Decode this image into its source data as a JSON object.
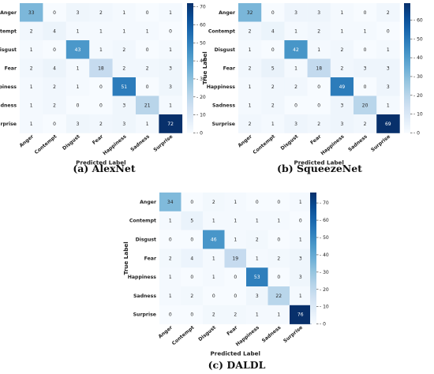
{
  "chart_data": [
    {
      "type": "heatmap",
      "caption": "(a) AlexNet",
      "xlabel": "Predicted Label",
      "ylabel": "True Label",
      "labels": [
        "Anger",
        "Contempt",
        "Disgust",
        "Fear",
        "Happiness",
        "Sadness",
        "Surprise"
      ],
      "matrix": [
        [
          33,
          0,
          3,
          2,
          1,
          0,
          1
        ],
        [
          2,
          4,
          1,
          1,
          1,
          1,
          0
        ],
        [
          1,
          0,
          43,
          1,
          2,
          0,
          1
        ],
        [
          2,
          4,
          1,
          18,
          2,
          2,
          3
        ],
        [
          1,
          2,
          1,
          0,
          51,
          0,
          3
        ],
        [
          1,
          2,
          0,
          0,
          3,
          21,
          1
        ],
        [
          1,
          0,
          3,
          2,
          3,
          1,
          72
        ]
      ],
      "colorbar_ticks": [
        0,
        10,
        20,
        30,
        40,
        50,
        60,
        70
      ],
      "vmax": 72
    },
    {
      "type": "heatmap",
      "caption": "(b) SqueezeNet",
      "xlabel": "Predicted Label",
      "ylabel": "True Label",
      "labels": [
        "Anger",
        "Contempt",
        "Disgust",
        "Fear",
        "Happiness",
        "Sadness",
        "Surprise"
      ],
      "matrix": [
        [
          32,
          0,
          3,
          3,
          1,
          0,
          2
        ],
        [
          2,
          4,
          1,
          2,
          1,
          1,
          0
        ],
        [
          1,
          0,
          42,
          1,
          2,
          0,
          1
        ],
        [
          2,
          5,
          1,
          18,
          2,
          3,
          3
        ],
        [
          1,
          2,
          2,
          0,
          49,
          0,
          3
        ],
        [
          1,
          2,
          0,
          0,
          3,
          20,
          1
        ],
        [
          2,
          1,
          3,
          2,
          3,
          2,
          69
        ]
      ],
      "colorbar_ticks": [
        0,
        10,
        20,
        30,
        40,
        50,
        60
      ],
      "vmax": 69
    },
    {
      "type": "heatmap",
      "caption": "(c) DALDL",
      "xlabel": "Predicted Label",
      "ylabel": "True Label",
      "labels": [
        "Anger",
        "Contempt",
        "Disgust",
        "Fear",
        "Happiness",
        "Sadness",
        "Surprise"
      ],
      "matrix": [
        [
          34,
          0,
          2,
          1,
          0,
          0,
          1
        ],
        [
          1,
          5,
          1,
          1,
          1,
          1,
          0
        ],
        [
          0,
          0,
          46,
          1,
          2,
          0,
          1
        ],
        [
          2,
          4,
          1,
          19,
          1,
          2,
          3
        ],
        [
          1,
          0,
          1,
          0,
          53,
          0,
          3
        ],
        [
          1,
          2,
          0,
          0,
          3,
          22,
          1
        ],
        [
          0,
          0,
          2,
          2,
          1,
          1,
          76
        ]
      ],
      "colorbar_ticks": [
        0,
        10,
        20,
        30,
        40,
        50,
        60,
        70
      ],
      "vmax": 76
    }
  ],
  "colors": {
    "low": "#f7fbff",
    "high": "#08306b"
  }
}
